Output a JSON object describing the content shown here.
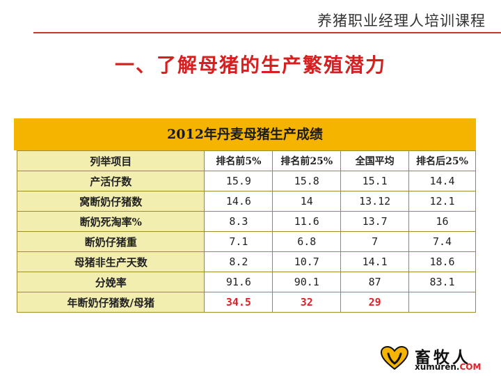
{
  "header": {
    "title": "养猪职业经理人培训课程"
  },
  "slide": {
    "title": "一、了解母猪的生产繁殖潜力"
  },
  "table": {
    "caption": "2012年丹麦母猪生产成绩",
    "columns": [
      "列举项目",
      "排名前5%",
      "排名前25%",
      "全国平均",
      "排名后25%"
    ],
    "rows": [
      {
        "label": "产活仔数",
        "values": [
          "15.9",
          "15.8",
          "15.1",
          "14.4"
        ]
      },
      {
        "label": "窝断奶仔猪数",
        "values": [
          "14.6",
          "14",
          "13.12",
          "12.1"
        ]
      },
      {
        "label": "断奶死淘率%",
        "values": [
          "8.3",
          "11.6",
          "13.7",
          "16"
        ]
      },
      {
        "label": "断奶仔猪重",
        "values": [
          "7.1",
          "6.8",
          "7",
          "7.4"
        ]
      },
      {
        "label": "母猪非生产天数",
        "values": [
          "8.2",
          "10.7",
          "14.1",
          "18.6"
        ]
      },
      {
        "label": "分娩率",
        "values": [
          "91.6",
          "90.1",
          "87",
          "83.1"
        ]
      },
      {
        "label": "年断奶仔猪数/母猪",
        "values": [
          "34.5",
          "32",
          "29"
        ]
      }
    ],
    "highlight_color": "#e0202a",
    "band_color": "#f5b400",
    "label_cell_color": "#f2eeb0"
  },
  "logo": {
    "name": "畜牧人",
    "site": "xumuren.",
    "site_suffix": "COM"
  }
}
